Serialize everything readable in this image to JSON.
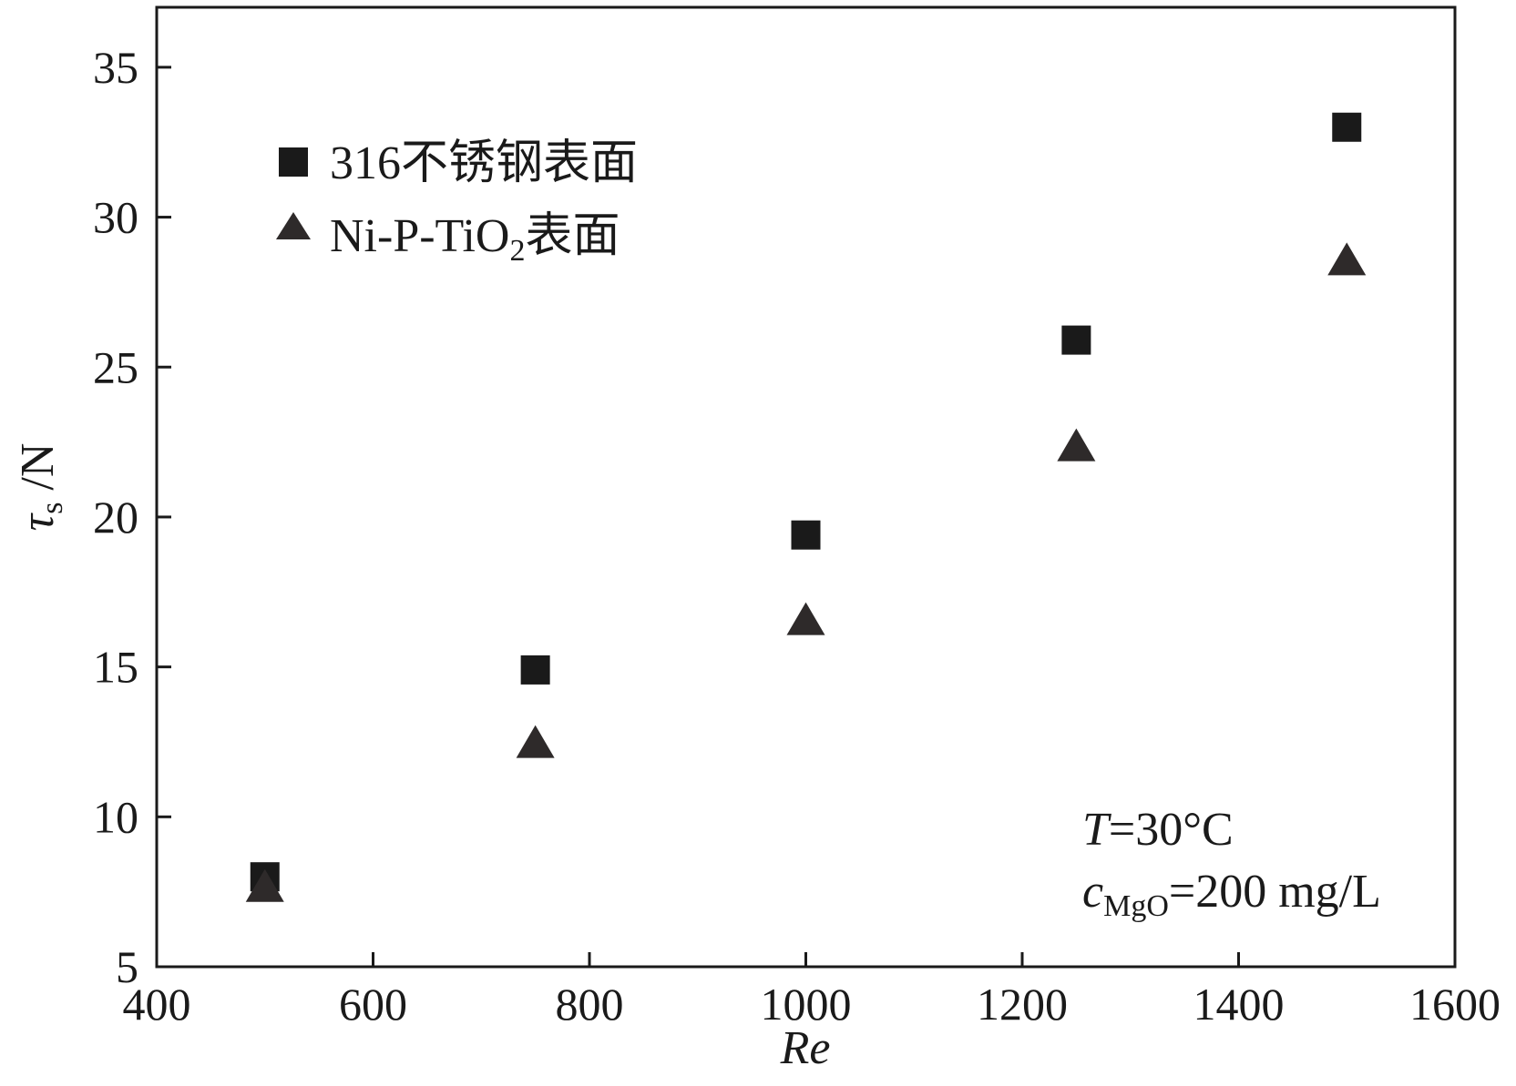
{
  "chart_data": {
    "type": "scatter",
    "title": "",
    "xlabel": "Re",
    "ylabel": {
      "main": "τ",
      "sub": "s",
      "unit": " /N"
    },
    "xlim": [
      400,
      1600
    ],
    "ylim": [
      5,
      37
    ],
    "x_ticks": [
      400,
      600,
      800,
      1000,
      1200,
      1400,
      1600
    ],
    "y_ticks": [
      5,
      10,
      15,
      20,
      25,
      30,
      35
    ],
    "grid": false,
    "legend_position": "top-left",
    "series": [
      {
        "name": "316不锈钢表面",
        "marker": "square",
        "color": "#1a1a1a",
        "x": [
          500,
          750,
          1000,
          1250,
          1500
        ],
        "y": [
          8.0,
          14.9,
          19.4,
          25.9,
          33.0
        ]
      },
      {
        "name": "Ni-P-TiO₂表面",
        "legend_parts": [
          "Ni-P-TiO",
          "2",
          "表面"
        ],
        "marker": "triangle",
        "color": "#2e2a2a",
        "x": [
          500,
          750,
          1000,
          1250,
          1500
        ],
        "y": [
          7.6,
          12.4,
          16.5,
          22.3,
          28.5
        ]
      }
    ],
    "annotations": {
      "temperature": {
        "var": "T",
        "rest": "=30°C"
      },
      "concentration": {
        "var": "c",
        "sub": "MgO",
        "rest": "=200 mg/L"
      }
    }
  }
}
